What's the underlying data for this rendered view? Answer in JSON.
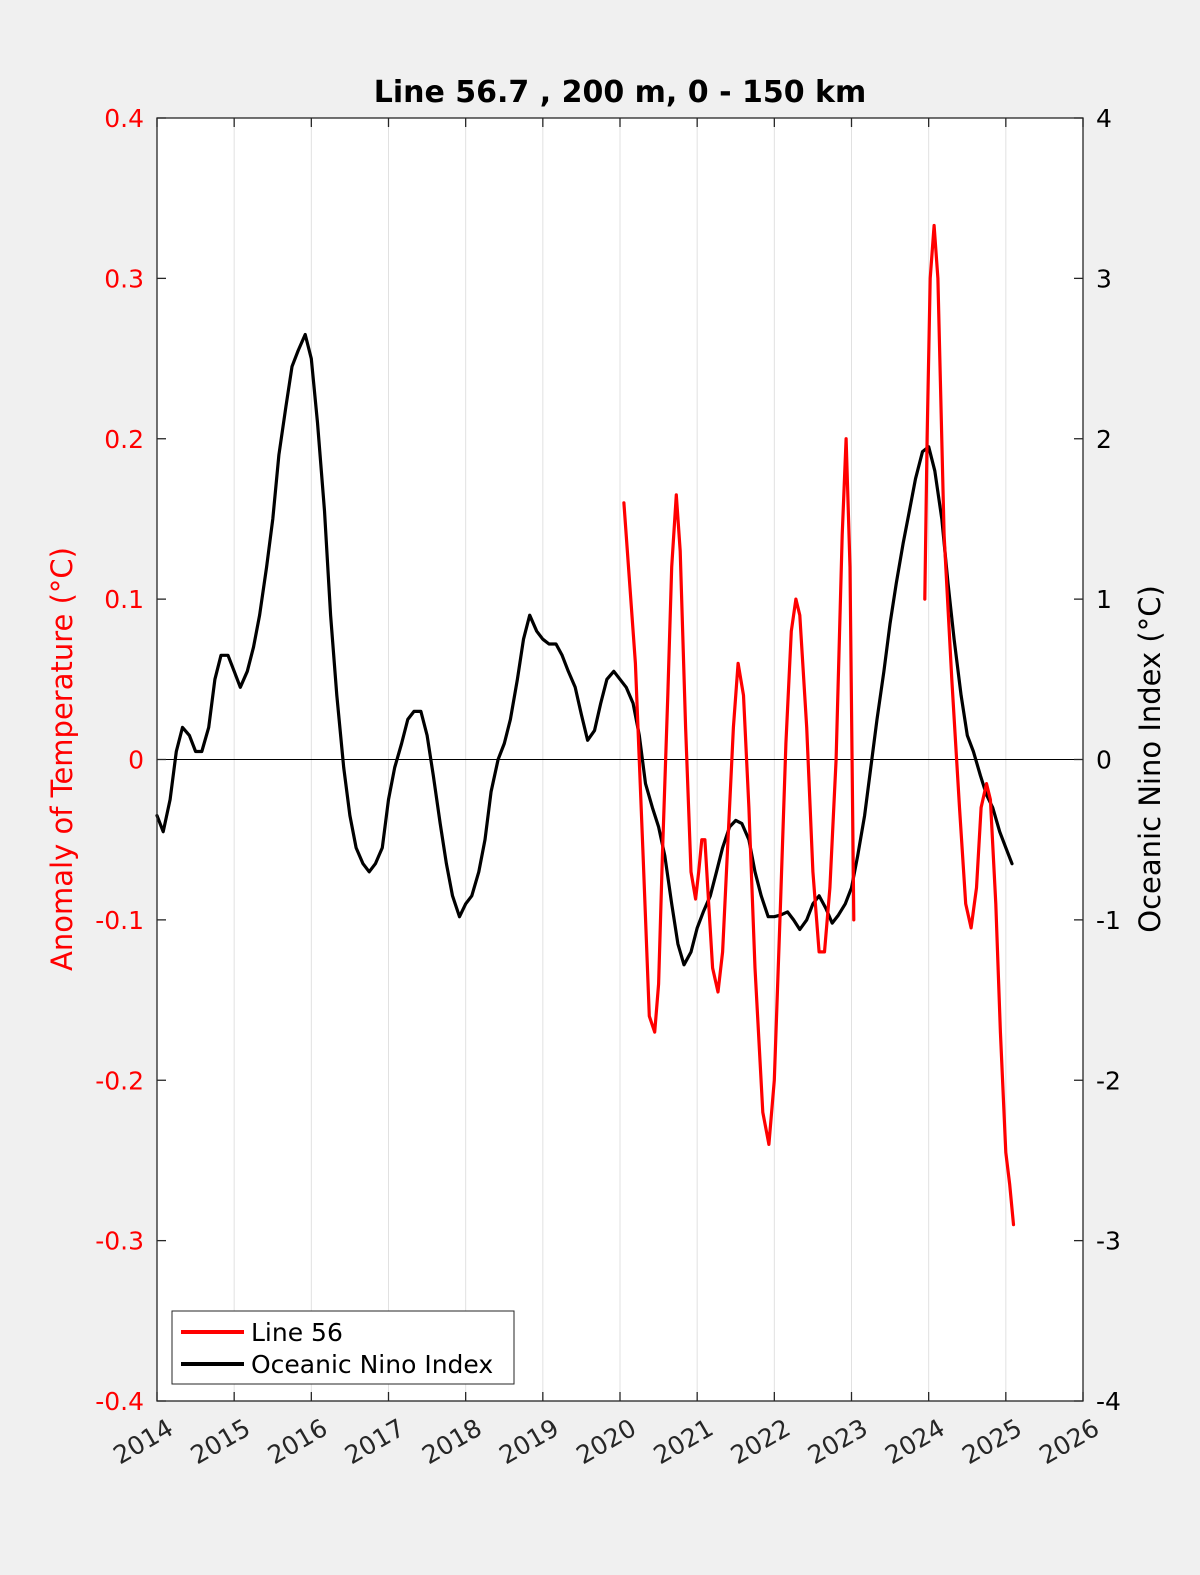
{
  "chart_data": {
    "type": "line",
    "title": "Line 56.7 , 200 m, 0 - 150 km",
    "xlabel": "",
    "ylabel_left": "Anomaly of Temperature (°C)",
    "ylabel_right": "Oceanic Nino Index (°C)",
    "xlim": [
      2014,
      2026
    ],
    "ylim_left": [
      -0.4,
      0.4
    ],
    "ylim_right": [
      -4,
      4
    ],
    "x_ticks": [
      "2014",
      "2015",
      "2016",
      "2017",
      "2018",
      "2019",
      "2020",
      "2021",
      "2022",
      "2023",
      "2024",
      "2025",
      "2026"
    ],
    "y_left_ticks": [
      "-0.4",
      "-0.3",
      "-0.2",
      "-0.1",
      "0",
      "0.1",
      "0.2",
      "0.3",
      "0.4"
    ],
    "y_right_ticks": [
      "-4",
      "-3",
      "-2",
      "-1",
      "0",
      "1",
      "2",
      "3",
      "4"
    ],
    "grid": "vertical",
    "zero_line": true,
    "legend_position": "bottom-left",
    "colors": {
      "left_axis": "#ff0000",
      "right_axis": "#000000",
      "background": "#f0f0f0",
      "plot_bg": "#ffffff",
      "grid": "#e1e1e1"
    },
    "series": [
      {
        "name": "Line 56",
        "axis": "left",
        "color": "#ff0000",
        "segments": [
          [
            [
              2020.05,
              0.16
            ],
            [
              2020.2,
              0.06
            ],
            [
              2020.3,
              -0.06
            ],
            [
              2020.38,
              -0.16
            ],
            [
              2020.45,
              -0.17
            ],
            [
              2020.5,
              -0.14
            ],
            [
              2020.55,
              -0.06
            ],
            [
              2020.62,
              0.04
            ],
            [
              2020.67,
              0.12
            ],
            [
              2020.73,
              0.165
            ],
            [
              2020.78,
              0.13
            ],
            [
              2020.85,
              0.02
            ],
            [
              2020.92,
              -0.07
            ],
            [
              2020.98,
              -0.087
            ],
            [
              2021.02,
              -0.07
            ],
            [
              2021.06,
              -0.05
            ],
            [
              2021.1,
              -0.05
            ],
            [
              2021.15,
              -0.09
            ],
            [
              2021.2,
              -0.13
            ],
            [
              2021.27,
              -0.145
            ],
            [
              2021.33,
              -0.12
            ],
            [
              2021.4,
              -0.05
            ],
            [
              2021.47,
              0.02
            ],
            [
              2021.53,
              0.06
            ],
            [
              2021.6,
              0.04
            ],
            [
              2021.67,
              -0.03
            ],
            [
              2021.75,
              -0.13
            ],
            [
              2021.85,
              -0.22
            ],
            [
              2021.93,
              -0.24
            ],
            [
              2022.0,
              -0.2
            ],
            [
              2022.08,
              -0.09
            ],
            [
              2022.15,
              0.01
            ],
            [
              2022.22,
              0.08
            ],
            [
              2022.28,
              0.1
            ],
            [
              2022.33,
              0.09
            ],
            [
              2022.42,
              0.02
            ],
            [
              2022.5,
              -0.07
            ],
            [
              2022.58,
              -0.12
            ],
            [
              2022.65,
              -0.12
            ],
            [
              2022.72,
              -0.08
            ],
            [
              2022.8,
              0.0
            ],
            [
              2022.88,
              0.14
            ],
            [
              2022.93,
              0.2
            ],
            [
              2022.98,
              0.12
            ],
            [
              2023.03,
              -0.1
            ]
          ],
          [
            [
              2023.95,
              0.1
            ],
            [
              2023.98,
              0.2
            ],
            [
              2024.02,
              0.3
            ],
            [
              2024.07,
              0.333
            ],
            [
              2024.12,
              0.3
            ],
            [
              2024.2,
              0.14
            ],
            [
              2024.3,
              0.05
            ],
            [
              2024.4,
              -0.03
            ],
            [
              2024.48,
              -0.09
            ],
            [
              2024.55,
              -0.105
            ],
            [
              2024.62,
              -0.08
            ],
            [
              2024.68,
              -0.03
            ],
            [
              2024.75,
              -0.015
            ],
            [
              2024.8,
              -0.025
            ],
            [
              2024.87,
              -0.09
            ],
            [
              2024.93,
              -0.17
            ],
            [
              2025.0,
              -0.245
            ],
            [
              2025.05,
              -0.265
            ],
            [
              2025.1,
              -0.29
            ]
          ]
        ]
      },
      {
        "name": "Oceanic Nino Index",
        "axis": "right",
        "color": "#000000",
        "segments": [
          [
            [
              2014.0,
              -0.35
            ],
            [
              2014.08,
              -0.45
            ],
            [
              2014.17,
              -0.25
            ],
            [
              2014.25,
              0.05
            ],
            [
              2014.33,
              0.2
            ],
            [
              2014.42,
              0.15
            ],
            [
              2014.5,
              0.05
            ],
            [
              2014.58,
              0.05
            ],
            [
              2014.67,
              0.2
            ],
            [
              2014.75,
              0.5
            ],
            [
              2014.83,
              0.65
            ],
            [
              2014.92,
              0.65
            ],
            [
              2015.0,
              0.55
            ],
            [
              2015.08,
              0.45
            ],
            [
              2015.17,
              0.55
            ],
            [
              2015.25,
              0.7
            ],
            [
              2015.33,
              0.9
            ],
            [
              2015.42,
              1.2
            ],
            [
              2015.5,
              1.5
            ],
            [
              2015.58,
              1.9
            ],
            [
              2015.67,
              2.2
            ],
            [
              2015.75,
              2.45
            ],
            [
              2015.83,
              2.55
            ],
            [
              2015.92,
              2.65
            ],
            [
              2016.0,
              2.5
            ],
            [
              2016.08,
              2.1
            ],
            [
              2016.17,
              1.55
            ],
            [
              2016.25,
              0.9
            ],
            [
              2016.33,
              0.4
            ],
            [
              2016.42,
              -0.05
            ],
            [
              2016.5,
              -0.35
            ],
            [
              2016.58,
              -0.55
            ],
            [
              2016.67,
              -0.65
            ],
            [
              2016.75,
              -0.7
            ],
            [
              2016.83,
              -0.65
            ],
            [
              2016.92,
              -0.55
            ],
            [
              2017.0,
              -0.25
            ],
            [
              2017.08,
              -0.05
            ],
            [
              2017.17,
              0.1
            ],
            [
              2017.25,
              0.25
            ],
            [
              2017.33,
              0.3
            ],
            [
              2017.42,
              0.3
            ],
            [
              2017.5,
              0.15
            ],
            [
              2017.58,
              -0.1
            ],
            [
              2017.67,
              -0.4
            ],
            [
              2017.75,
              -0.65
            ],
            [
              2017.83,
              -0.85
            ],
            [
              2017.92,
              -0.98
            ],
            [
              2018.0,
              -0.9
            ],
            [
              2018.08,
              -0.85
            ],
            [
              2018.17,
              -0.7
            ],
            [
              2018.25,
              -0.5
            ],
            [
              2018.33,
              -0.2
            ],
            [
              2018.42,
              0.0
            ],
            [
              2018.5,
              0.1
            ],
            [
              2018.58,
              0.25
            ],
            [
              2018.67,
              0.5
            ],
            [
              2018.75,
              0.75
            ],
            [
              2018.83,
              0.9
            ],
            [
              2018.92,
              0.8
            ],
            [
              2019.0,
              0.75
            ],
            [
              2019.08,
              0.72
            ],
            [
              2019.17,
              0.72
            ],
            [
              2019.25,
              0.65
            ],
            [
              2019.33,
              0.55
            ],
            [
              2019.42,
              0.45
            ],
            [
              2019.5,
              0.28
            ],
            [
              2019.58,
              0.12
            ],
            [
              2019.67,
              0.18
            ],
            [
              2019.75,
              0.35
            ],
            [
              2019.83,
              0.5
            ],
            [
              2019.92,
              0.55
            ],
            [
              2020.0,
              0.5
            ],
            [
              2020.08,
              0.45
            ],
            [
              2020.17,
              0.35
            ],
            [
              2020.25,
              0.15
            ],
            [
              2020.33,
              -0.15
            ],
            [
              2020.42,
              -0.3
            ],
            [
              2020.5,
              -0.42
            ],
            [
              2020.58,
              -0.6
            ],
            [
              2020.67,
              -0.9
            ],
            [
              2020.75,
              -1.15
            ],
            [
              2020.83,
              -1.28
            ],
            [
              2020.92,
              -1.2
            ],
            [
              2021.0,
              -1.05
            ],
            [
              2021.08,
              -0.95
            ],
            [
              2021.17,
              -0.85
            ],
            [
              2021.25,
              -0.7
            ],
            [
              2021.33,
              -0.55
            ],
            [
              2021.42,
              -0.42
            ],
            [
              2021.5,
              -0.38
            ],
            [
              2021.58,
              -0.4
            ],
            [
              2021.67,
              -0.5
            ],
            [
              2021.75,
              -0.7
            ],
            [
              2021.83,
              -0.85
            ],
            [
              2021.92,
              -0.98
            ],
            [
              2022.0,
              -0.98
            ],
            [
              2022.08,
              -0.97
            ],
            [
              2022.17,
              -0.95
            ],
            [
              2022.25,
              -1.0
            ],
            [
              2022.33,
              -1.06
            ],
            [
              2022.42,
              -1.0
            ],
            [
              2022.5,
              -0.9
            ],
            [
              2022.58,
              -0.85
            ],
            [
              2022.67,
              -0.93
            ],
            [
              2022.75,
              -1.02
            ],
            [
              2022.83,
              -0.97
            ],
            [
              2022.92,
              -0.9
            ],
            [
              2023.0,
              -0.8
            ],
            [
              2023.08,
              -0.6
            ],
            [
              2023.17,
              -0.35
            ],
            [
              2023.25,
              -0.05
            ],
            [
              2023.33,
              0.25
            ],
            [
              2023.42,
              0.55
            ],
            [
              2023.5,
              0.85
            ],
            [
              2023.58,
              1.1
            ],
            [
              2023.67,
              1.35
            ],
            [
              2023.75,
              1.55
            ],
            [
              2023.83,
              1.75
            ],
            [
              2023.92,
              1.92
            ],
            [
              2024.0,
              1.95
            ],
            [
              2024.08,
              1.8
            ],
            [
              2024.17,
              1.5
            ],
            [
              2024.25,
              1.1
            ],
            [
              2024.33,
              0.75
            ],
            [
              2024.42,
              0.4
            ],
            [
              2024.5,
              0.15
            ],
            [
              2024.58,
              0.05
            ],
            [
              2024.67,
              -0.1
            ],
            [
              2024.75,
              -0.22
            ],
            [
              2024.83,
              -0.3
            ],
            [
              2024.92,
              -0.45
            ],
            [
              2025.0,
              -0.55
            ],
            [
              2025.08,
              -0.65
            ]
          ]
        ]
      }
    ]
  }
}
